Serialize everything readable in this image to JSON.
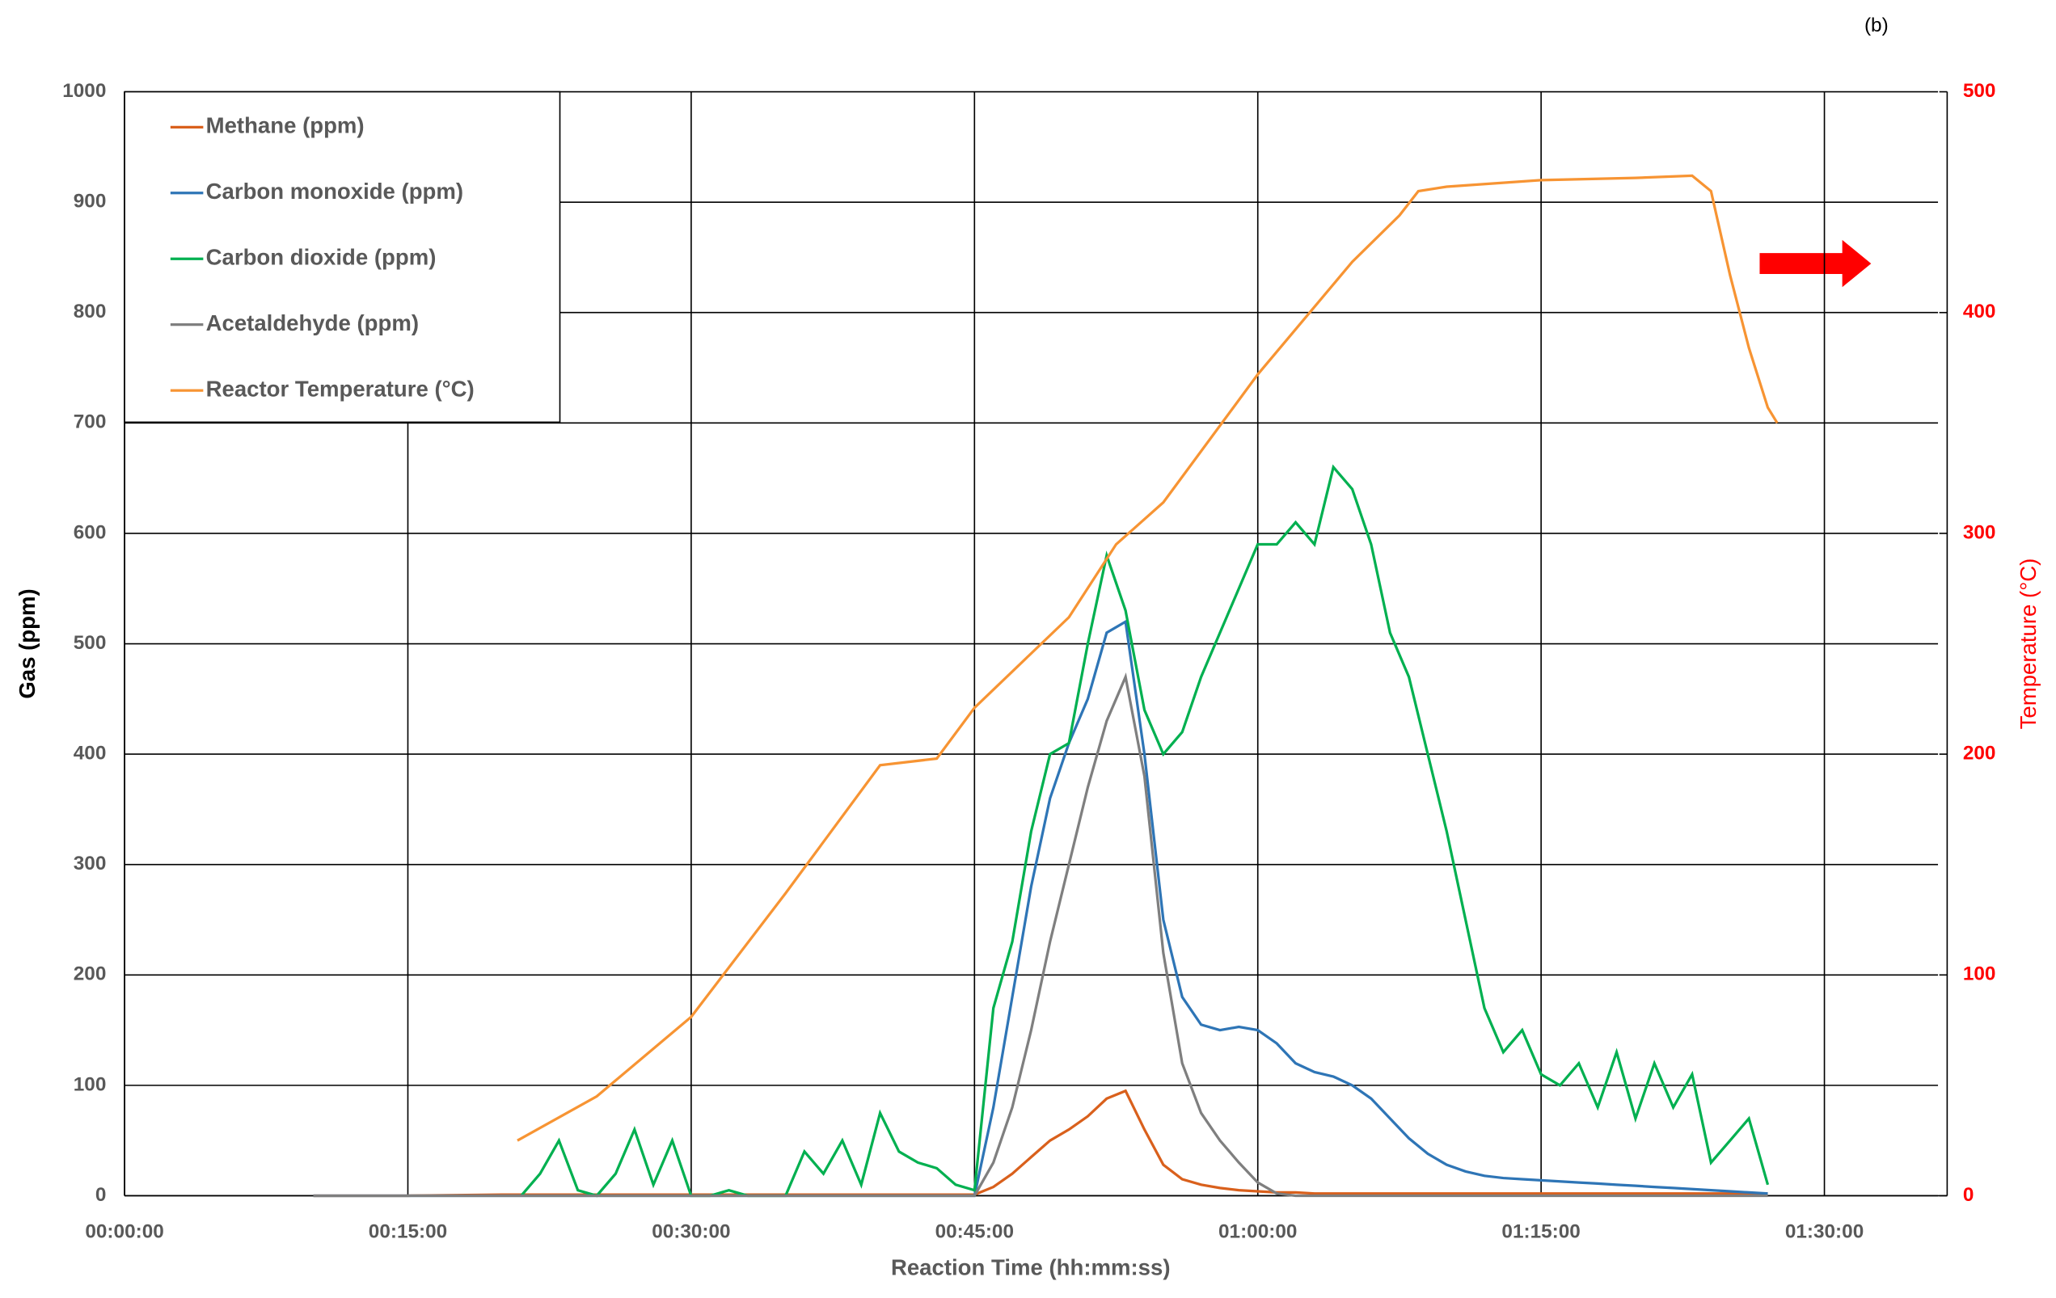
{
  "chart_data": {
    "type": "line",
    "panel_label": "(b)",
    "x_label": "Reaction Time (hh:mm:ss)",
    "y_label": "Gas (ppm)",
    "y2_label": "Temperature (°C)",
    "y2_color": "#ff0000",
    "grid": true,
    "legend": "upper left",
    "xlim": [
      0,
      96.5
    ],
    "xticks": [
      {
        "value": 0,
        "label": "00:00:00"
      },
      {
        "value": 15,
        "label": "00:15:00"
      },
      {
        "value": 30,
        "label": "00:30:00"
      },
      {
        "value": 45,
        "label": "00:45:00"
      },
      {
        "value": 60,
        "label": "01:00:00"
      },
      {
        "value": 75,
        "label": "01:15:00"
      },
      {
        "value": 90,
        "label": "01:30:00"
      }
    ],
    "ylim": [
      0,
      1000
    ],
    "yticks": [
      0,
      100,
      200,
      300,
      400,
      500,
      600,
      700,
      800,
      900,
      1000
    ],
    "y2lim": [
      0,
      500
    ],
    "y2ticks": [
      0,
      100,
      200,
      300,
      400,
      500
    ],
    "x": [
      10,
      15,
      20,
      21,
      22,
      23,
      24,
      25,
      26,
      27,
      28,
      29,
      30,
      31,
      32,
      33,
      34,
      35,
      36,
      37,
      38,
      39,
      40,
      41,
      42,
      43,
      44,
      45,
      46,
      47,
      48,
      49,
      50,
      51,
      52,
      53,
      54,
      55,
      56,
      57,
      58,
      59,
      60,
      61,
      62,
      63,
      64,
      65,
      66,
      67,
      68,
      69,
      70,
      71,
      72,
      73,
      74,
      75,
      76,
      77,
      78,
      79,
      80,
      81,
      82,
      83,
      84,
      85,
      86,
      87
    ],
    "series": [
      {
        "name": "Methane (ppm)",
        "color": "#d9601c",
        "values": [
          0,
          0,
          1,
          1,
          1,
          1,
          1,
          1,
          1,
          1,
          1,
          1,
          1,
          1,
          1,
          1,
          1,
          1,
          1,
          1,
          1,
          1,
          1,
          1,
          1,
          1,
          1,
          1,
          8,
          20,
          35,
          50,
          60,
          72,
          88,
          95,
          60,
          28,
          15,
          10,
          7,
          5,
          4,
          3,
          3,
          2,
          2,
          2,
          2,
          2,
          2,
          2,
          2,
          2,
          2,
          2,
          2,
          2,
          2,
          2,
          2,
          2,
          2,
          2,
          2,
          2,
          2,
          2,
          2,
          2
        ]
      },
      {
        "name": "Carbon monoxide (ppm)",
        "color": "#2e75b6",
        "values": [
          0,
          0,
          0,
          0,
          0,
          0,
          0,
          0,
          0,
          0,
          0,
          0,
          0,
          0,
          0,
          0,
          0,
          0,
          0,
          0,
          0,
          0,
          0,
          0,
          0,
          0,
          0,
          0,
          80,
          180,
          280,
          360,
          410,
          450,
          510,
          520,
          400,
          250,
          180,
          155,
          150,
          153,
          150,
          138,
          120,
          112,
          108,
          100,
          88,
          70,
          52,
          38,
          28,
          22,
          18,
          16,
          15,
          14,
          13,
          12,
          11,
          10,
          9,
          8,
          7,
          6,
          5,
          4,
          3,
          2
        ]
      },
      {
        "name": "Carbon dioxide (ppm)",
        "color": "#00b050",
        "values": [
          null,
          null,
          null,
          0,
          20,
          50,
          5,
          0,
          20,
          60,
          10,
          50,
          0,
          0,
          5,
          0,
          0,
          0,
          40,
          20,
          50,
          10,
          75,
          40,
          30,
          25,
          10,
          5,
          170,
          230,
          330,
          400,
          410,
          500,
          580,
          530,
          440,
          400,
          420,
          470,
          510,
          550,
          590,
          590,
          610,
          590,
          660,
          640,
          590,
          510,
          470,
          400,
          330,
          250,
          170,
          130,
          150,
          110,
          100,
          120,
          80,
          130,
          70,
          120,
          80,
          110,
          30,
          50,
          70,
          10
        ]
      },
      {
        "name": "Acetaldehyde (ppm)",
        "color": "#7f7f7f",
        "values": [
          0,
          0,
          0,
          0,
          0,
          0,
          0,
          0,
          0,
          0,
          0,
          0,
          0,
          0,
          0,
          0,
          0,
          0,
          0,
          0,
          0,
          0,
          0,
          0,
          0,
          0,
          0,
          0,
          30,
          80,
          150,
          230,
          300,
          370,
          430,
          470,
          380,
          220,
          120,
          75,
          50,
          30,
          12,
          2,
          0,
          0,
          0,
          0,
          0,
          0,
          0,
          0,
          0,
          0,
          0,
          0,
          0,
          0,
          0,
          0,
          0,
          0,
          0,
          0,
          0,
          0,
          0,
          0,
          0,
          0
        ]
      },
      {
        "name": "Reactor Temperature (°C)",
        "color": "#f79433",
        "axis": "y2",
        "x": [
          20.8,
          25,
          30,
          35,
          40,
          43,
          45,
          50,
          52.5,
          55,
          60,
          65,
          67.5,
          68.5,
          70,
          75,
          80,
          83,
          84,
          85,
          86,
          87,
          87.5
        ],
        "values": [
          25,
          45,
          81,
          137,
          195,
          198,
          221,
          262,
          295,
          314,
          372,
          423,
          444,
          455,
          457,
          460,
          461,
          462,
          455,
          417,
          384,
          357,
          350
        ]
      }
    ]
  }
}
